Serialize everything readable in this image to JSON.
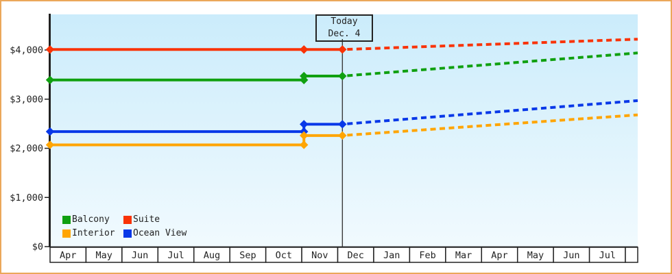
{
  "chart_data": {
    "type": "line",
    "title": "",
    "x_tick_labels": [
      "Apr",
      "May",
      "Jun",
      "Jul",
      "Aug",
      "Sep",
      "Oct",
      "Nov",
      "Dec",
      "Jan",
      "Feb",
      "Mar",
      "Apr",
      "May",
      "Jun",
      "Jul"
    ],
    "y_tick_labels": [
      "$0",
      "$1,000",
      "$2,000",
      "$3,000",
      "$4,000"
    ],
    "y_tick_values": [
      0,
      1000,
      2000,
      3000,
      4000
    ],
    "ylim": [
      0,
      4725
    ],
    "grid": "off",
    "legend_position": "bottom-left-inside",
    "today": {
      "label": "Today",
      "date": "Dec. 4",
      "month_frac": 8.13
    },
    "price_change_month_frac": 7.06,
    "projection_style": "dashed",
    "series": [
      {
        "name": "Balcony",
        "color": "#10a010",
        "value_initial": 3390,
        "value_after_change": 3470,
        "value_at_today": 3470,
        "value_projected_end": 3940
      },
      {
        "name": "Suite",
        "color": "#f93307",
        "value_initial": 4010,
        "value_after_change": 4010,
        "value_at_today": 4010,
        "value_projected_end": 4220
      },
      {
        "name": "Interior",
        "color": "#ffa502",
        "value_initial": 2070,
        "value_after_change": 2260,
        "value_at_today": 2260,
        "value_projected_end": 2680
      },
      {
        "name": "Ocean View",
        "color": "#0838e8",
        "value_initial": 2340,
        "value_after_change": 2490,
        "value_at_today": 2490,
        "value_projected_end": 2970
      }
    ]
  },
  "legend": {
    "entries": [
      {
        "label": "Balcony",
        "color": "#10a010"
      },
      {
        "label": "Suite",
        "color": "#f93307"
      },
      {
        "label": "Interior",
        "color": "#ffa502"
      },
      {
        "label": "Ocean View",
        "color": "#0838e8"
      }
    ]
  },
  "colors": {
    "frame_border": "#eba75a",
    "axis": "#222222",
    "plot_bg_top": "#cbecfb",
    "plot_bg_bottom": "#f1fafe"
  }
}
